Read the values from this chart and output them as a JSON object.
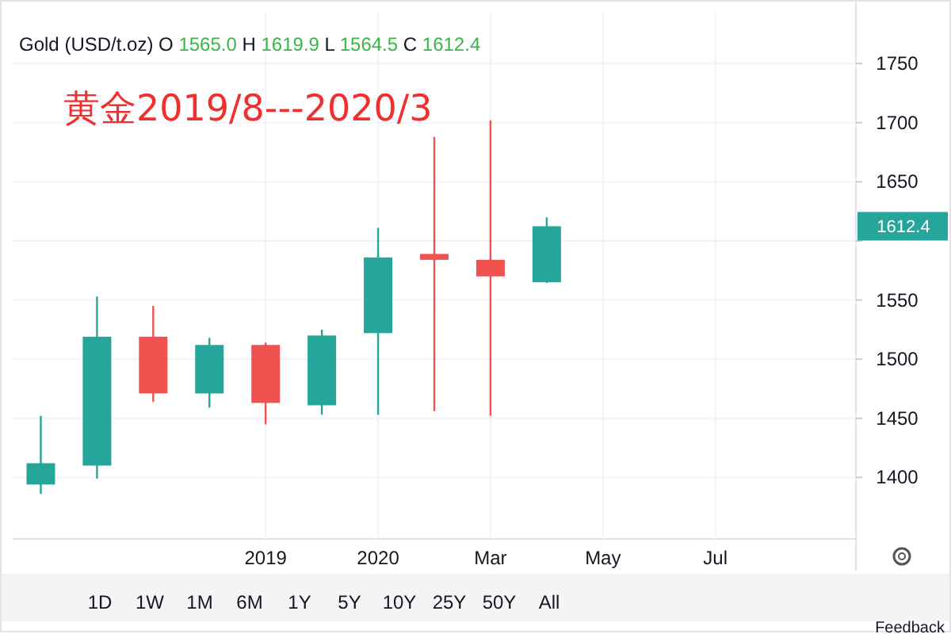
{
  "chart_data": {
    "type": "candlestick",
    "title": "Gold (USD/t.oz) O 1565.0 H 1619.9 L 1564.5 C 1612.4",
    "subtitle": "黄金2019/8---2020/3",
    "categories": [
      null,
      null,
      null,
      null,
      "2019",
      null,
      "2020",
      null,
      "Mar",
      null,
      "May",
      null,
      "Jul",
      null,
      null
    ],
    "ohlc": [
      [
        1394,
        1452,
        1386,
        1412
      ],
      [
        1410,
        1553,
        1399,
        1519
      ],
      [
        1519,
        1545,
        1464,
        1471
      ],
      [
        1471,
        1518,
        1459,
        1512
      ],
      [
        1512,
        1514,
        1445,
        1463
      ],
      [
        1461,
        1525,
        1453,
        1520
      ],
      [
        1522,
        1611,
        1453,
        1586
      ],
      [
        1589,
        1688,
        1456,
        1584
      ],
      [
        1584,
        1702,
        1452,
        1570
      ],
      [
        1565.0,
        1619.9,
        1564.5,
        1612.4
      ],
      null,
      null,
      null,
      null,
      null
    ],
    "colors": [
      "#26a69a",
      "#26a69a",
      "#ef5350",
      "#26a69a",
      "#ef5350",
      "#26a69a",
      "#26a69a",
      "#ef5350",
      "#ef5350",
      "#26a69a",
      null,
      null,
      null,
      null,
      null
    ],
    "ylim": [
      1348,
      1793
    ],
    "yticks": [
      1400,
      1450,
      1500,
      1550,
      {
        "value": 1600,
        "label": null
      },
      1650,
      1700,
      1750
    ],
    "grid": true,
    "annotations": [
      "1612.4",
      "1D",
      "1W",
      "1M",
      "6M",
      "1Y",
      "5Y",
      "10Y",
      "25Y",
      "50Y",
      "All",
      "Feedback"
    ]
  }
}
